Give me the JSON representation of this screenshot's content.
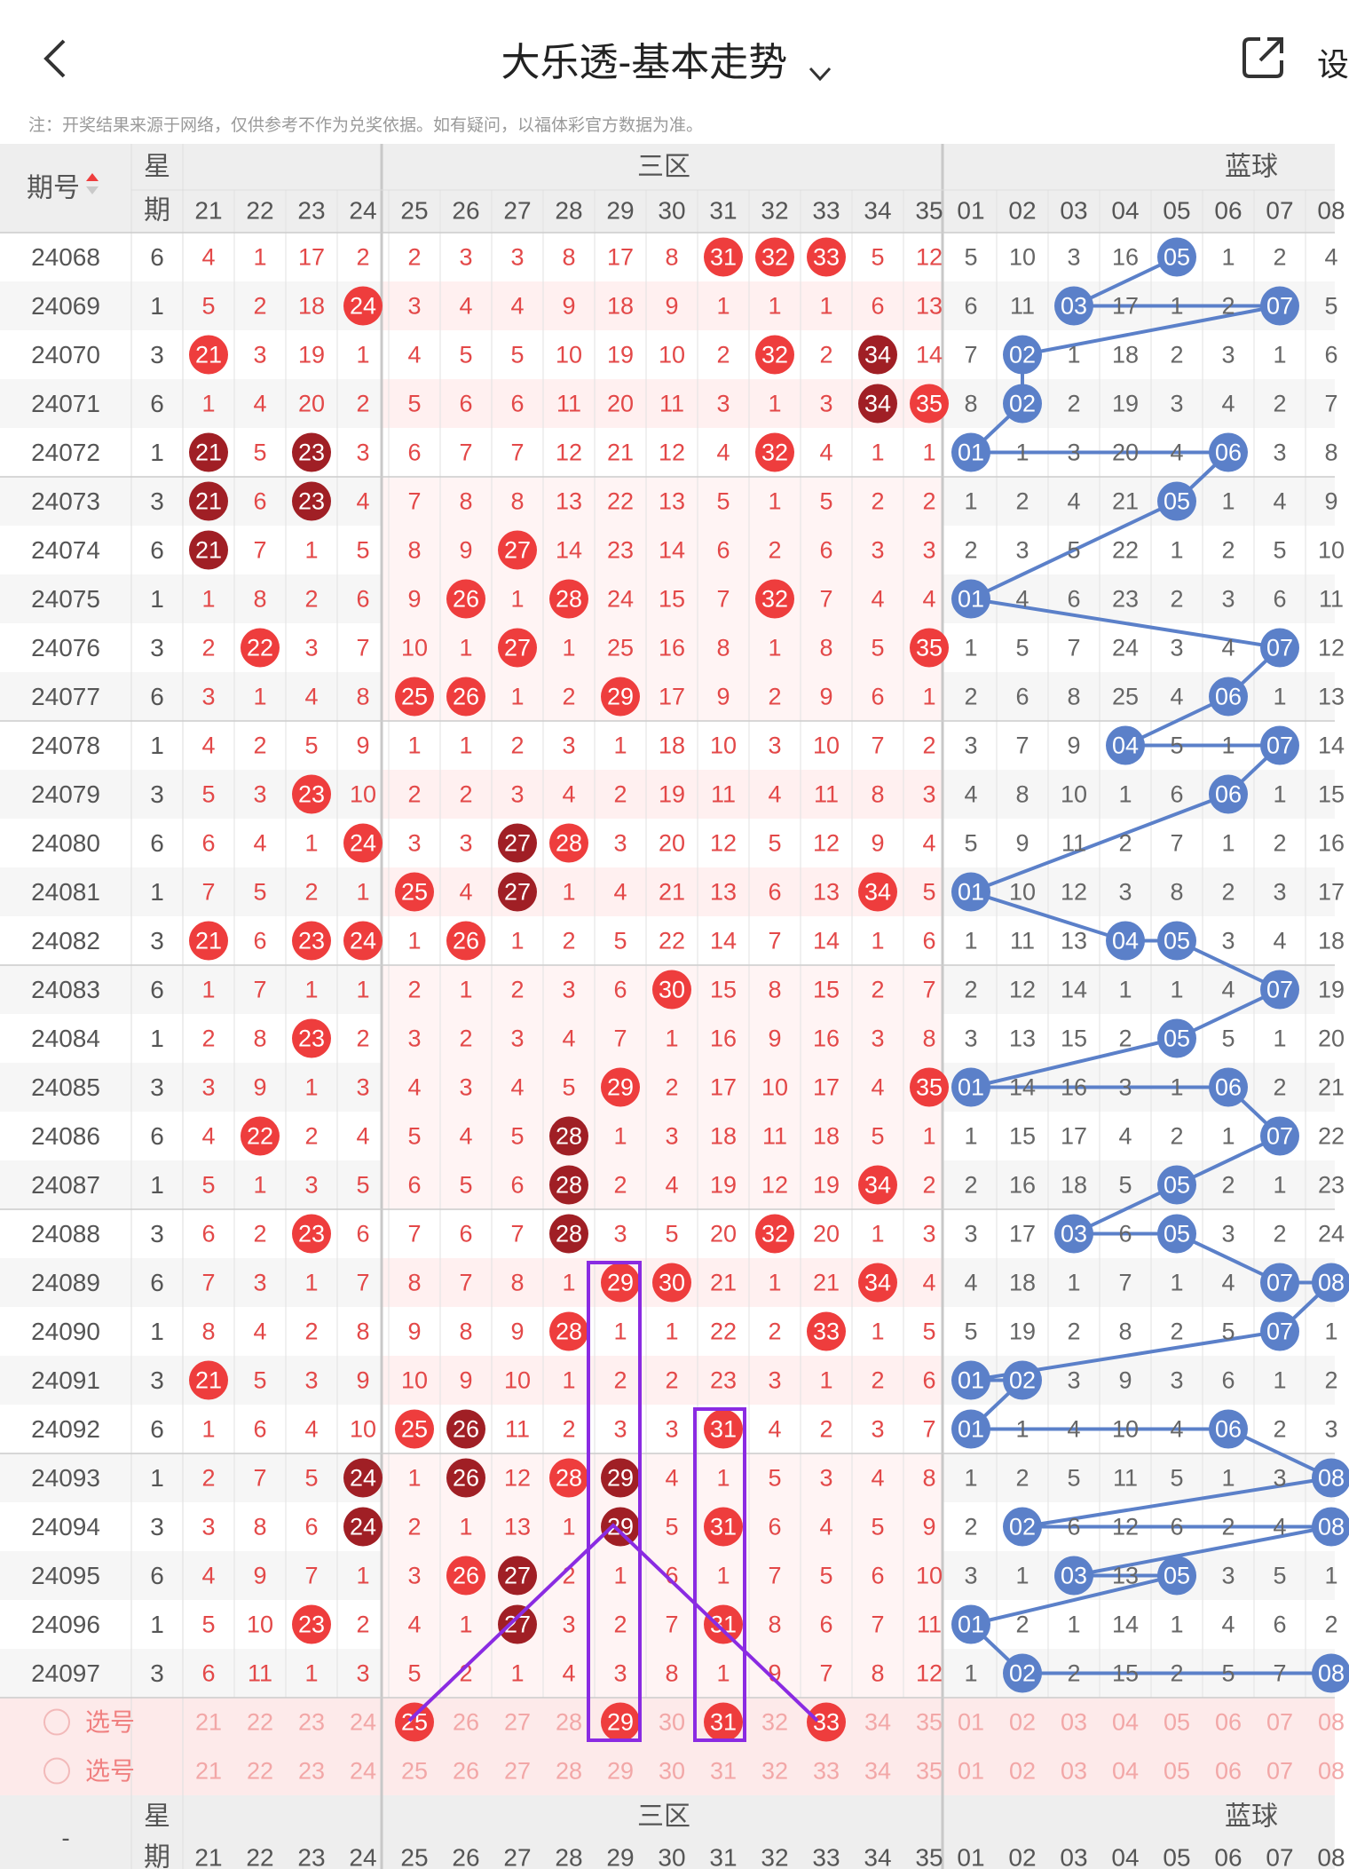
{
  "header": {
    "title": "大乐透-基本走势",
    "settings_label": "设",
    "note": "注：开奖结果来源于网络，仅供参考不作为兑奖依据。如有疑问，以福体彩官方数据为准。"
  },
  "table": {
    "period_header": "期号",
    "week_header_top": "星",
    "week_header_bottom": "期",
    "zone3_label": "三区",
    "blue_label": "蓝球",
    "red_columns": [
      "21",
      "22",
      "23",
      "24",
      "25",
      "26",
      "27",
      "28",
      "29",
      "30",
      "31",
      "32",
      "33",
      "34",
      "35"
    ],
    "blue_columns": [
      "01",
      "02",
      "03",
      "04",
      "05",
      "06",
      "07",
      "08"
    ],
    "rows": [
      {
        "period": "24068",
        "week": "6",
        "red": [
          "4",
          "1",
          "17",
          "2",
          "2",
          "3",
          "3",
          "8",
          "17",
          "8",
          "31",
          "32",
          "33",
          "5",
          "12"
        ],
        "blue": [
          "5",
          "10",
          "3",
          "16",
          "05",
          "1",
          "2",
          "4"
        ]
      },
      {
        "period": "24069",
        "week": "1",
        "red": [
          "5",
          "2",
          "18",
          "24",
          "3",
          "4",
          "4",
          "9",
          "18",
          "9",
          "1",
          "1",
          "1",
          "6",
          "13"
        ],
        "blue": [
          "6",
          "11",
          "03",
          "17",
          "1",
          "2",
          "07",
          "5"
        ]
      },
      {
        "period": "24070",
        "week": "3",
        "red": [
          "21",
          "3",
          "19",
          "1",
          "4",
          "5",
          "5",
          "10",
          "19",
          "10",
          "2",
          "32",
          "2",
          "34",
          "14"
        ],
        "blue": [
          "7",
          "02",
          "1",
          "18",
          "2",
          "3",
          "1",
          "6"
        ]
      },
      {
        "period": "24071",
        "week": "6",
        "red": [
          "1",
          "4",
          "20",
          "2",
          "5",
          "6",
          "6",
          "11",
          "20",
          "11",
          "3",
          "1",
          "3",
          "34",
          "35"
        ],
        "blue": [
          "8",
          "02",
          "2",
          "19",
          "3",
          "4",
          "2",
          "7"
        ]
      },
      {
        "period": "24072",
        "week": "1",
        "red": [
          "21",
          "5",
          "23",
          "3",
          "6",
          "7",
          "7",
          "12",
          "21",
          "12",
          "4",
          "32",
          "4",
          "1",
          "1"
        ],
        "blue": [
          "01",
          "1",
          "3",
          "20",
          "4",
          "06",
          "3",
          "8"
        ]
      },
      {
        "period": "24073",
        "week": "3",
        "red": [
          "21",
          "6",
          "23",
          "4",
          "7",
          "8",
          "8",
          "13",
          "22",
          "13",
          "5",
          "1",
          "5",
          "2",
          "2"
        ],
        "blue": [
          "1",
          "2",
          "4",
          "21",
          "05",
          "1",
          "4",
          "9"
        ]
      },
      {
        "period": "24074",
        "week": "6",
        "red": [
          "21",
          "7",
          "1",
          "5",
          "8",
          "9",
          "27",
          "14",
          "23",
          "14",
          "6",
          "2",
          "6",
          "3",
          "3"
        ],
        "blue": [
          "2",
          "3",
          "5",
          "22",
          "1",
          "2",
          "5",
          "10"
        ]
      },
      {
        "period": "24075",
        "week": "1",
        "red": [
          "1",
          "8",
          "2",
          "6",
          "9",
          "26",
          "1",
          "28",
          "24",
          "15",
          "7",
          "32",
          "7",
          "4",
          "4"
        ],
        "blue": [
          "01",
          "4",
          "6",
          "23",
          "2",
          "3",
          "6",
          "11"
        ]
      },
      {
        "period": "24076",
        "week": "3",
        "red": [
          "2",
          "22",
          "3",
          "7",
          "10",
          "1",
          "27",
          "1",
          "25",
          "16",
          "8",
          "1",
          "8",
          "5",
          "35"
        ],
        "blue": [
          "1",
          "5",
          "7",
          "24",
          "3",
          "4",
          "07",
          "12"
        ]
      },
      {
        "period": "24077",
        "week": "6",
        "red": [
          "3",
          "1",
          "4",
          "8",
          "25",
          "26",
          "1",
          "2",
          "29",
          "17",
          "9",
          "2",
          "9",
          "6",
          "1"
        ],
        "blue": [
          "2",
          "6",
          "8",
          "25",
          "4",
          "06",
          "1",
          "13"
        ]
      },
      {
        "period": "24078",
        "week": "1",
        "red": [
          "4",
          "2",
          "5",
          "9",
          "1",
          "1",
          "2",
          "3",
          "1",
          "18",
          "10",
          "3",
          "10",
          "7",
          "2"
        ],
        "blue": [
          "3",
          "7",
          "9",
          "04",
          "5",
          "1",
          "07",
          "14"
        ]
      },
      {
        "period": "24079",
        "week": "3",
        "red": [
          "5",
          "3",
          "23",
          "10",
          "2",
          "2",
          "3",
          "4",
          "2",
          "19",
          "11",
          "4",
          "11",
          "8",
          "3"
        ],
        "blue": [
          "4",
          "8",
          "10",
          "1",
          "6",
          "06",
          "1",
          "15"
        ]
      },
      {
        "period": "24080",
        "week": "6",
        "red": [
          "6",
          "4",
          "1",
          "24",
          "3",
          "3",
          "27",
          "28",
          "3",
          "20",
          "12",
          "5",
          "12",
          "9",
          "4"
        ],
        "blue": [
          "5",
          "9",
          "11",
          "2",
          "7",
          "1",
          "2",
          "16"
        ]
      },
      {
        "period": "24081",
        "week": "1",
        "red": [
          "7",
          "5",
          "2",
          "1",
          "25",
          "4",
          "27",
          "1",
          "4",
          "21",
          "13",
          "6",
          "13",
          "34",
          "5"
        ],
        "blue": [
          "01",
          "10",
          "12",
          "3",
          "8",
          "2",
          "3",
          "17"
        ]
      },
      {
        "period": "24082",
        "week": "3",
        "red": [
          "21",
          "6",
          "23",
          "24",
          "1",
          "26",
          "1",
          "2",
          "5",
          "22",
          "14",
          "7",
          "14",
          "1",
          "6"
        ],
        "blue": [
          "1",
          "11",
          "13",
          "04",
          "05",
          "3",
          "4",
          "18"
        ]
      },
      {
        "period": "24083",
        "week": "6",
        "red": [
          "1",
          "7",
          "1",
          "1",
          "2",
          "1",
          "2",
          "3",
          "6",
          "30",
          "15",
          "8",
          "15",
          "2",
          "7"
        ],
        "blue": [
          "2",
          "12",
          "14",
          "1",
          "1",
          "4",
          "07",
          "19"
        ]
      },
      {
        "period": "24084",
        "week": "1",
        "red": [
          "2",
          "8",
          "23",
          "2",
          "3",
          "2",
          "3",
          "4",
          "7",
          "1",
          "16",
          "9",
          "16",
          "3",
          "8"
        ],
        "blue": [
          "3",
          "13",
          "15",
          "2",
          "05",
          "5",
          "1",
          "20"
        ]
      },
      {
        "period": "24085",
        "week": "3",
        "red": [
          "3",
          "9",
          "1",
          "3",
          "4",
          "3",
          "4",
          "5",
          "29",
          "2",
          "17",
          "10",
          "17",
          "4",
          "35"
        ],
        "blue": [
          "01",
          "14",
          "16",
          "3",
          "1",
          "06",
          "2",
          "21"
        ]
      },
      {
        "period": "24086",
        "week": "6",
        "red": [
          "4",
          "22",
          "2",
          "4",
          "5",
          "4",
          "5",
          "28",
          "1",
          "3",
          "18",
          "11",
          "18",
          "5",
          "1"
        ],
        "blue": [
          "1",
          "15",
          "17",
          "4",
          "2",
          "1",
          "07",
          "22"
        ]
      },
      {
        "period": "24087",
        "week": "1",
        "red": [
          "5",
          "1",
          "3",
          "5",
          "6",
          "5",
          "6",
          "28",
          "2",
          "4",
          "19",
          "12",
          "19",
          "34",
          "2"
        ],
        "blue": [
          "2",
          "16",
          "18",
          "5",
          "05",
          "2",
          "1",
          "23"
        ]
      },
      {
        "period": "24088",
        "week": "3",
        "red": [
          "6",
          "2",
          "23",
          "6",
          "7",
          "6",
          "7",
          "28",
          "3",
          "5",
          "20",
          "32",
          "20",
          "1",
          "3"
        ],
        "blue": [
          "3",
          "17",
          "03",
          "6",
          "05",
          "3",
          "2",
          "24"
        ]
      },
      {
        "period": "24089",
        "week": "6",
        "red": [
          "7",
          "3",
          "1",
          "7",
          "8",
          "7",
          "8",
          "1",
          "29",
          "30",
          "21",
          "1",
          "21",
          "34",
          "4"
        ],
        "blue": [
          "4",
          "18",
          "1",
          "7",
          "1",
          "4",
          "07",
          "08"
        ]
      },
      {
        "period": "24090",
        "week": "1",
        "red": [
          "8",
          "4",
          "2",
          "8",
          "9",
          "8",
          "9",
          "28",
          "1",
          "1",
          "22",
          "2",
          "33",
          "1",
          "5"
        ],
        "blue": [
          "5",
          "19",
          "2",
          "8",
          "2",
          "5",
          "07",
          "1"
        ]
      },
      {
        "period": "24091",
        "week": "3",
        "red": [
          "21",
          "5",
          "3",
          "9",
          "10",
          "9",
          "10",
          "1",
          "2",
          "2",
          "23",
          "3",
          "1",
          "2",
          "6"
        ],
        "blue": [
          "01",
          "02",
          "3",
          "9",
          "3",
          "6",
          "1",
          "2"
        ]
      },
      {
        "period": "24092",
        "week": "6",
        "red": [
          "1",
          "6",
          "4",
          "10",
          "25",
          "26",
          "11",
          "2",
          "3",
          "3",
          "31",
          "4",
          "2",
          "3",
          "7"
        ],
        "blue": [
          "01",
          "1",
          "4",
          "10",
          "4",
          "06",
          "2",
          "3"
        ]
      },
      {
        "period": "24093",
        "week": "1",
        "red": [
          "2",
          "7",
          "5",
          "24",
          "1",
          "26",
          "12",
          "28",
          "29",
          "4",
          "1",
          "5",
          "3",
          "4",
          "8"
        ],
        "blue": [
          "1",
          "2",
          "5",
          "11",
          "5",
          "1",
          "3",
          "08"
        ]
      },
      {
        "period": "24094",
        "week": "3",
        "red": [
          "3",
          "8",
          "6",
          "24",
          "2",
          "1",
          "13",
          "1",
          "29",
          "5",
          "31",
          "6",
          "4",
          "5",
          "9"
        ],
        "blue": [
          "2",
          "02",
          "6",
          "12",
          "6",
          "2",
          "4",
          "08"
        ]
      },
      {
        "period": "24095",
        "week": "6",
        "red": [
          "4",
          "9",
          "7",
          "1",
          "3",
          "26",
          "27",
          "2",
          "1",
          "6",
          "1",
          "7",
          "5",
          "6",
          "10"
        ],
        "blue": [
          "3",
          "1",
          "03",
          "13",
          "05",
          "3",
          "5",
          "1"
        ]
      },
      {
        "period": "24096",
        "week": "1",
        "red": [
          "5",
          "10",
          "23",
          "2",
          "4",
          "1",
          "27",
          "3",
          "2",
          "7",
          "31",
          "8",
          "6",
          "7",
          "11"
        ],
        "blue": [
          "01",
          "2",
          "1",
          "14",
          "1",
          "4",
          "6",
          "2"
        ]
      },
      {
        "period": "24097",
        "week": "3",
        "red": [
          "6",
          "11",
          "1",
          "3",
          "5",
          "2",
          "1",
          "4",
          "3",
          "8",
          "1",
          "9",
          "7",
          "8",
          "12"
        ],
        "blue": [
          "1",
          "02",
          "2",
          "15",
          "2",
          "5",
          "7",
          "08"
        ]
      }
    ],
    "select_rows": [
      {
        "label": "选号",
        "red": [
          "21",
          "22",
          "23",
          "24",
          "25",
          "26",
          "27",
          "28",
          "29",
          "30",
          "31",
          "32",
          "33",
          "34",
          "35"
        ],
        "blue": [
          "01",
          "02",
          "03",
          "04",
          "05",
          "06",
          "07",
          "08"
        ],
        "selected": [
          "25",
          "29",
          "31",
          "33"
        ]
      },
      {
        "label": "选号",
        "red": [
          "21",
          "22",
          "23",
          "24",
          "25",
          "26",
          "27",
          "28",
          "29",
          "30",
          "31",
          "32",
          "33",
          "34",
          "35"
        ],
        "blue": [
          "01",
          "02",
          "03",
          "04",
          "05",
          "06",
          "07",
          "08"
        ],
        "selected": []
      }
    ],
    "footer_dash": "-"
  },
  "colors": {
    "red_ball": "#ee3d3d",
    "dark_ball": "#a01f25",
    "blue_ball": "#5b80c9",
    "red_text": "#e34848",
    "gray_text": "#666666",
    "annotation": "#8a2be2"
  }
}
